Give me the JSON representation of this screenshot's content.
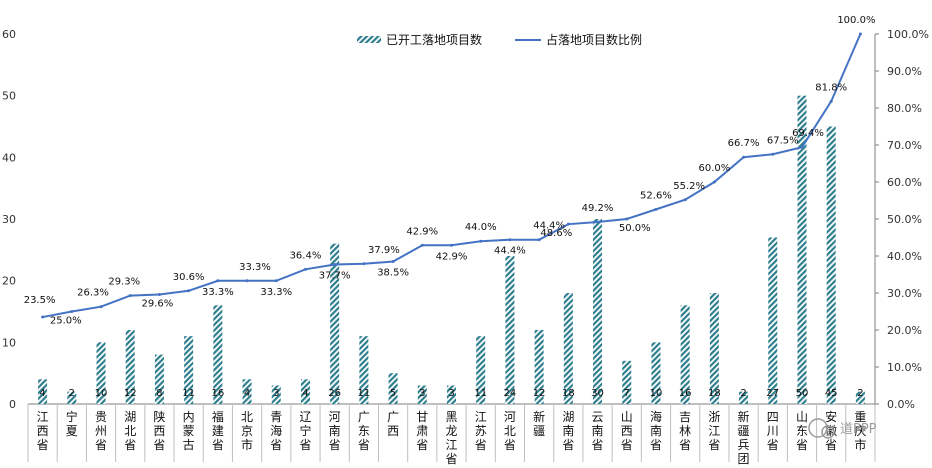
{
  "chart_data": {
    "type": "bar+line",
    "categories": [
      "江西省",
      "宁夏",
      "贵州省",
      "湖北省",
      "陕西省",
      "内蒙古",
      "福建省",
      "北京市",
      "青海省",
      "辽宁省",
      "河南省",
      "广东省",
      "广西",
      "甘肃省",
      "黑龙江省",
      "江苏省",
      "河北省",
      "新疆",
      "湖南省",
      "云南省",
      "山西省",
      "海南省",
      "吉林省",
      "浙江省",
      "新疆兵团",
      "四川省",
      "山东省",
      "安徽省",
      "重庆市"
    ],
    "series": [
      {
        "name": "已开工落地项目数",
        "type": "bar",
        "axis": "left",
        "values": [
          4,
          2,
          10,
          12,
          8,
          11,
          16,
          4,
          3,
          4,
          26,
          11,
          5,
          3,
          3,
          11,
          24,
          12,
          18,
          30,
          7,
          10,
          16,
          18,
          2,
          27,
          50,
          45,
          2
        ],
        "labels": [
          "4",
          "2",
          "10",
          "12",
          "8",
          "11",
          "16",
          "4",
          "3",
          "4",
          "26",
          "11",
          "5",
          "3",
          "3",
          "11",
          "24",
          "12",
          "18",
          "30",
          "7",
          "10",
          "16",
          "18",
          "2",
          "27",
          "50",
          "45",
          "2"
        ]
      },
      {
        "name": "占落地项目数比例",
        "type": "line",
        "axis": "right",
        "values": [
          23.5,
          25.0,
          26.3,
          29.3,
          29.6,
          30.6,
          33.3,
          33.3,
          33.3,
          36.4,
          37.7,
          37.9,
          38.5,
          42.9,
          42.9,
          44.0,
          44.4,
          44.4,
          48.6,
          49.2,
          50.0,
          52.6,
          55.2,
          60.0,
          66.7,
          67.5,
          69.4,
          81.8,
          100.0
        ],
        "labels": [
          "23.5%",
          "25.0%",
          "26.3%",
          "29.3%",
          "29.6%",
          "30.6%",
          "33.3%",
          "33.3%",
          "33.3%",
          "36.4%",
          "37.7%",
          "37.9%",
          "38.5%",
          "42.9%",
          "42.9%",
          "44.0%",
          "44.4%",
          "44.4%",
          "48.6%",
          "49.2%",
          "50.0%",
          "52.6%",
          "55.2%",
          "60.0%",
          "66.7%",
          "67.5%",
          "69.4%",
          "81.8%",
          "100.0%"
        ]
      }
    ],
    "y_left": {
      "ylim": [
        0,
        60
      ],
      "ticks": [
        "0",
        "10",
        "20",
        "30",
        "40",
        "50",
        "60"
      ]
    },
    "y_right": {
      "ylim": [
        0,
        100
      ],
      "ticks": [
        "0.0%",
        "10.0%",
        "20.0%",
        "30.0%",
        "40.0%",
        "50.0%",
        "60.0%",
        "70.0%",
        "80.0%",
        "90.0%",
        "100.0%"
      ]
    },
    "legend": "top-center",
    "grid": false
  },
  "watermark": "道PPP",
  "colors": {
    "bar": "#2e7e8e",
    "line": "#4472c4",
    "axis": "#7f7f7f"
  }
}
